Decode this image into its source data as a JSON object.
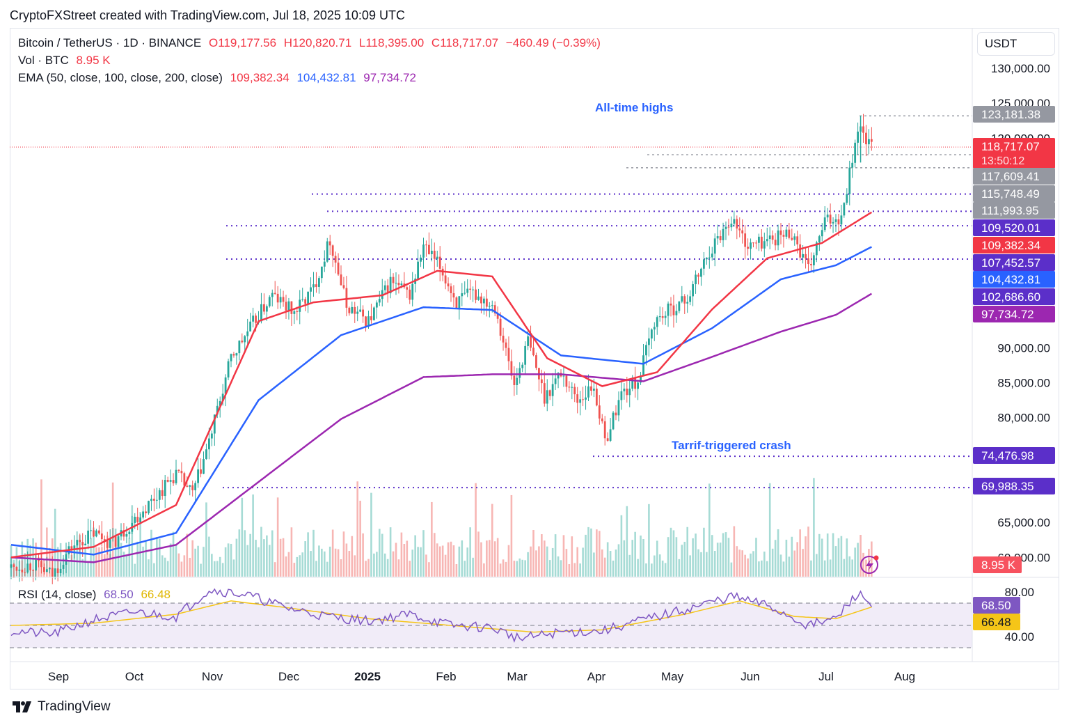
{
  "header": {
    "credit": "CryptoFXStreet created with TradingView.com, Jul 18, 2025 10:09 UTC"
  },
  "legend": {
    "symbol": "Bitcoin / TetherUS · 1D · BINANCE",
    "open": "O119,177.56",
    "high": "H120,820.71",
    "low": "L118,395.00",
    "close": "C118,717.07",
    "change": "−460.49 (−0.39%)",
    "vol_label": "Vol · BTC",
    "vol_value": "8.95 K",
    "ema_label": "EMA (50, close, 100, close, 200, close)",
    "ema50": "109,382.34",
    "ema100": "104,432.81",
    "ema200": "97,734.72",
    "rsi_label": "RSI (14, close)",
    "rsi_value": "68.50",
    "rsi_ma": "66.48"
  },
  "currency": "USDT",
  "annotations": {
    "ath": "All-time highs",
    "crash": "Tarrif-triggered crash"
  },
  "footer": {
    "brand": "TradingView"
  },
  "colors": {
    "up": "#26a69a",
    "down": "#ef5350",
    "ema50": "#f23645",
    "ema100": "#2962ff",
    "ema200": "#9c27b0",
    "level": "#5b2fc9",
    "rsi": "#7e57c2",
    "rsi_ma": "#f5c518"
  },
  "chart_data": {
    "type": "candlestick",
    "title": "Bitcoin / TetherUS · 1D · BINANCE",
    "x_labels": [
      "Sep",
      "Oct",
      "Nov",
      "Dec",
      "2025",
      "Feb",
      "Mar",
      "Apr",
      "May",
      "Jun",
      "Jul",
      "Aug"
    ],
    "ylim": [
      57000,
      133000
    ],
    "y_ticks": [
      "130,000.00",
      "125,000.00",
      "120,000.00",
      "90,000.00",
      "85,000.00",
      "80,000.00",
      "65,000.00",
      "60,000.00"
    ],
    "y_tick_values": [
      130000,
      125000,
      120000,
      90000,
      85000,
      80000,
      65000,
      60000
    ],
    "price_path": [
      [
        0,
        58500
      ],
      [
        8,
        59000
      ],
      [
        15,
        57500
      ],
      [
        22,
        61500
      ],
      [
        30,
        63500
      ],
      [
        37,
        62000
      ],
      [
        45,
        65500
      ],
      [
        52,
        68500
      ],
      [
        60,
        72000
      ],
      [
        66,
        69000
      ],
      [
        72,
        76500
      ],
      [
        80,
        88500
      ],
      [
        88,
        93500
      ],
      [
        95,
        97500
      ],
      [
        103,
        95000
      ],
      [
        110,
        98500
      ],
      [
        116,
        105500
      ],
      [
        122,
        96000
      ],
      [
        130,
        93800
      ],
      [
        138,
        99500
      ],
      [
        145,
        97500
      ],
      [
        150,
        104500
      ],
      [
        156,
        101500
      ],
      [
        162,
        96500
      ],
      [
        168,
        97800
      ],
      [
        176,
        96000
      ],
      [
        183,
        84500
      ],
      [
        188,
        91000
      ],
      [
        194,
        83000
      ],
      [
        200,
        86500
      ],
      [
        206,
        82500
      ],
      [
        212,
        84500
      ],
      [
        216,
        76500
      ],
      [
        222,
        83500
      ],
      [
        228,
        85200
      ],
      [
        234,
        93800
      ],
      [
        240,
        95500
      ],
      [
        246,
        97000
      ],
      [
        254,
        103800
      ],
      [
        262,
        108600
      ],
      [
        268,
        104500
      ],
      [
        276,
        105500
      ],
      [
        284,
        106500
      ],
      [
        290,
        101000
      ],
      [
        296,
        108000
      ],
      [
        302,
        108800
      ],
      [
        308,
        121500
      ],
      [
        313,
        118717
      ]
    ],
    "ema50_path": [
      [
        0,
        60000
      ],
      [
        30,
        61500
      ],
      [
        60,
        67500
      ],
      [
        90,
        93800
      ],
      [
        110,
        96500
      ],
      [
        135,
        97500
      ],
      [
        155,
        101000
      ],
      [
        175,
        100200
      ],
      [
        195,
        88500
      ],
      [
        215,
        84500
      ],
      [
        235,
        86500
      ],
      [
        255,
        95500
      ],
      [
        275,
        102800
      ],
      [
        295,
        105000
      ],
      [
        313,
        109382
      ]
    ],
    "ema100_path": [
      [
        0,
        61800
      ],
      [
        30,
        60400
      ],
      [
        60,
        63500
      ],
      [
        90,
        82500
      ],
      [
        120,
        91800
      ],
      [
        150,
        95800
      ],
      [
        175,
        95400
      ],
      [
        200,
        88900
      ],
      [
        230,
        87700
      ],
      [
        255,
        92800
      ],
      [
        280,
        99800
      ],
      [
        300,
        101800
      ],
      [
        313,
        104432
      ]
    ],
    "ema200_path": [
      [
        0,
        60000
      ],
      [
        30,
        59300
      ],
      [
        60,
        61800
      ],
      [
        90,
        70800
      ],
      [
        120,
        79800
      ],
      [
        150,
        85800
      ],
      [
        175,
        86200
      ],
      [
        200,
        86200
      ],
      [
        230,
        85200
      ],
      [
        255,
        88700
      ],
      [
        280,
        92300
      ],
      [
        300,
        94700
      ],
      [
        313,
        97734
      ]
    ],
    "price_labels": [
      {
        "value": 118717.07,
        "text": "118,717.07",
        "sub": "13:50:12",
        "kind": "last"
      },
      {
        "value": 123181.38,
        "text": "123,181.38",
        "kind": "gray"
      },
      {
        "value": 117609.41,
        "text": "117,609.41",
        "kind": "gray"
      },
      {
        "value": 115748.49,
        "text": "115,748.49",
        "kind": "gray"
      },
      {
        "value": 111993.95,
        "text": "111,993.95",
        "kind": "gray"
      },
      {
        "value": 109520.01,
        "text": "109,520.01",
        "kind": "level"
      },
      {
        "value": 109382.34,
        "text": "109,382.34",
        "kind": "ema50"
      },
      {
        "value": 107452.57,
        "text": "107,452.57",
        "kind": "level"
      },
      {
        "value": 104432.81,
        "text": "104,432.81",
        "kind": "ema100"
      },
      {
        "value": 102686.6,
        "text": "102,686.60",
        "kind": "level"
      },
      {
        "value": 97734.72,
        "text": "97,734.72",
        "kind": "ema200"
      },
      {
        "value": 74476.98,
        "text": "74,476.98",
        "kind": "level"
      },
      {
        "value": 69988.35,
        "text": "69,988.35",
        "kind": "level"
      }
    ],
    "support_levels": [
      109520.01,
      107452.57,
      102686.6,
      74476.98,
      69988.35
    ],
    "vol_label": "8.95 K",
    "rsi": {
      "value": 68.5,
      "ma": 66.48,
      "bands": [
        70,
        50,
        30
      ],
      "ticks": [
        "80.00",
        "40.00"
      ],
      "tick_values": [
        80,
        40
      ],
      "value_text": "68.50",
      "ma_text": "66.48",
      "path": [
        [
          0,
          45
        ],
        [
          15,
          42
        ],
        [
          30,
          55
        ],
        [
          45,
          62
        ],
        [
          60,
          58
        ],
        [
          72,
          82
        ],
        [
          85,
          78
        ],
        [
          100,
          66
        ],
        [
          115,
          58
        ],
        [
          130,
          54
        ],
        [
          145,
          60
        ],
        [
          160,
          50
        ],
        [
          175,
          48
        ],
        [
          185,
          38
        ],
        [
          200,
          44
        ],
        [
          215,
          45
        ],
        [
          230,
          55
        ],
        [
          245,
          64
        ],
        [
          262,
          76
        ],
        [
          275,
          68
        ],
        [
          290,
          50
        ],
        [
          300,
          56
        ],
        [
          308,
          79
        ],
        [
          313,
          68.5
        ]
      ],
      "ma_path": [
        [
          0,
          50
        ],
        [
          30,
          52
        ],
        [
          60,
          60
        ],
        [
          80,
          72
        ],
        [
          100,
          66
        ],
        [
          130,
          56
        ],
        [
          160,
          50
        ],
        [
          190,
          44
        ],
        [
          215,
          46
        ],
        [
          245,
          60
        ],
        [
          265,
          72
        ],
        [
          285,
          58
        ],
        [
          300,
          56
        ],
        [
          313,
          66.48
        ]
      ]
    }
  }
}
